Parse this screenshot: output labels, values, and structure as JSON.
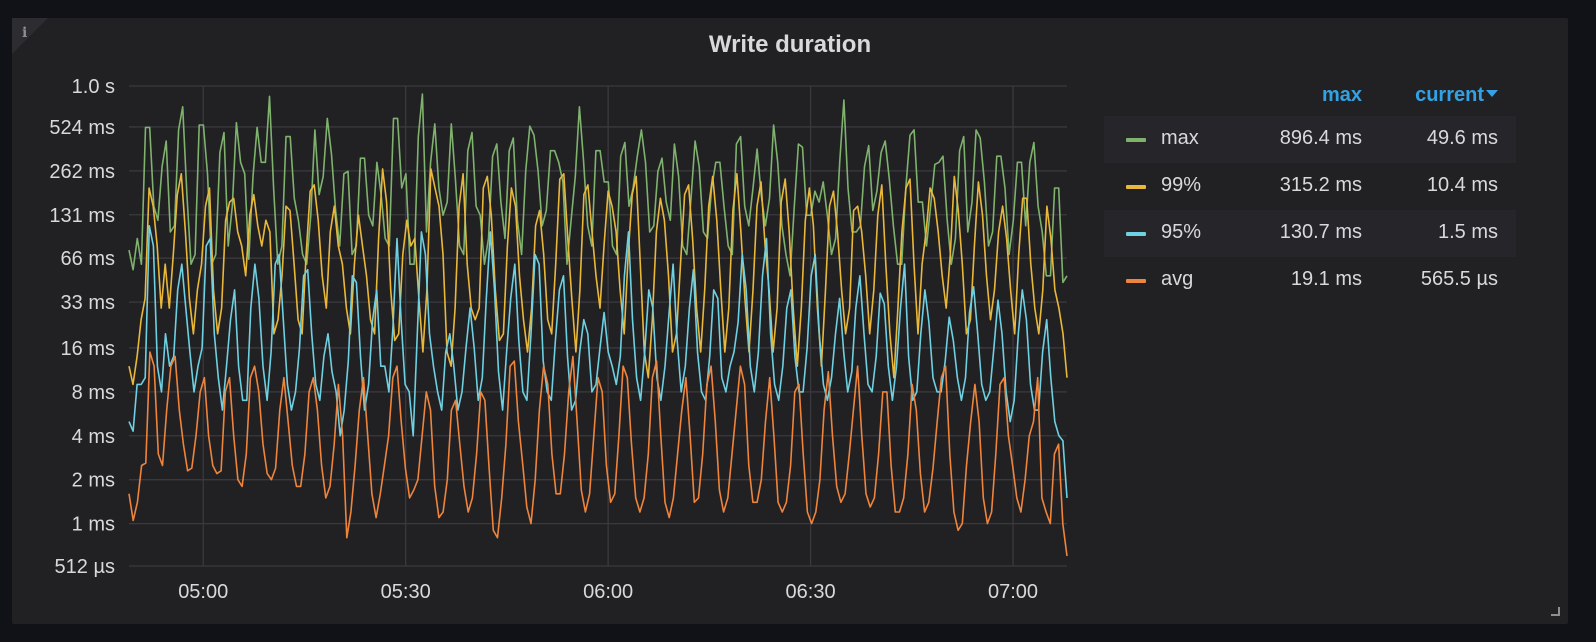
{
  "panel": {
    "title": "Write duration"
  },
  "chart_data": {
    "type": "line",
    "title": "Write duration",
    "y_scale": "log2",
    "y_ticks_ms": [
      0.512,
      1,
      2,
      4,
      8,
      16,
      33,
      66,
      131,
      262,
      524,
      1000
    ],
    "y_tick_labels": [
      "512 µs",
      "1 ms",
      "2 ms",
      "4 ms",
      "8 ms",
      "16 ms",
      "33 ms",
      "66 ms",
      "131 ms",
      "262 ms",
      "524 ms",
      "1.0 s"
    ],
    "ylim_ms": [
      0.512,
      1000
    ],
    "x_ticks": [
      "05:00",
      "05:30",
      "06:00",
      "06:30",
      "07:00"
    ],
    "x_range": [
      "04:49",
      "07:08"
    ],
    "grid": true,
    "legend_position": "right",
    "series": [
      {
        "name": "max",
        "color": "#7eb26d",
        "values_ms": [
          75,
          55,
          90,
          60,
          520,
          520,
          150,
          120,
          280,
          420,
          100,
          110,
          500,
          720,
          180,
          60,
          70,
          540,
          540,
          250,
          60,
          70,
          350,
          480,
          80,
          150,
          560,
          300,
          250,
          65,
          240,
          520,
          300,
          300,
          850,
          200,
          60,
          80,
          450,
          450,
          170,
          120,
          70,
          60,
          130,
          500,
          180,
          240,
          600,
          340,
          140,
          80,
          250,
          260,
          70,
          80,
          320,
          320,
          130,
          110,
          300,
          180,
          90,
          80,
          600,
          600,
          200,
          250,
          60,
          60,
          450,
          880,
          100,
          300,
          550,
          200,
          130,
          160,
          550,
          230,
          80,
          70,
          360,
          480,
          150,
          130,
          60,
          90,
          330,
          400,
          160,
          90,
          360,
          440,
          120,
          70,
          260,
          530,
          460,
          260,
          110,
          140,
          360,
          360,
          300,
          220,
          60,
          120,
          240,
          720,
          310,
          110,
          80,
          360,
          360,
          220,
          220,
          80,
          70,
          330,
          410,
          150,
          200,
          330,
          500,
          300,
          100,
          110,
          260,
          320,
          160,
          120,
          400,
          240,
          80,
          70,
          170,
          420,
          280,
          100,
          90,
          200,
          300,
          300,
          150,
          80,
          70,
          400,
          450,
          150,
          110,
          200,
          370,
          180,
          110,
          170,
          540,
          300,
          110,
          70,
          50,
          150,
          400,
          380,
          130,
          130,
          190,
          160,
          220,
          130,
          70,
          90,
          300,
          800,
          200,
          100,
          100,
          110,
          280,
          390,
          140,
          190,
          350,
          420,
          230,
          110,
          60,
          60,
          200,
          460,
          500,
          160,
          160,
          80,
          150,
          290,
          300,
          330,
          120,
          60,
          90,
          360,
          450,
          100,
          160,
          500,
          440,
          220,
          80,
          100,
          330,
          330,
          200,
          70,
          120,
          300,
          300,
          110,
          300,
          410,
          150,
          100,
          50,
          50,
          200,
          200,
          45,
          50
        ]
      },
      {
        "name": "99%",
        "color": "#eab839",
        "values_ms": [
          12,
          9,
          14,
          25,
          35,
          200,
          150,
          80,
          30,
          60,
          30,
          70,
          180,
          250,
          100,
          35,
          20,
          40,
          60,
          150,
          200,
          40,
          20,
          30,
          120,
          160,
          170,
          100,
          80,
          50,
          130,
          180,
          110,
          80,
          120,
          100,
          20,
          25,
          50,
          150,
          140,
          60,
          25,
          20,
          70,
          190,
          210,
          120,
          50,
          30,
          100,
          150,
          80,
          60,
          30,
          20,
          60,
          130,
          80,
          50,
          25,
          20,
          90,
          270,
          160,
          40,
          18,
          20,
          70,
          120,
          80,
          90,
          35,
          15,
          40,
          270,
          200,
          150,
          70,
          15,
          12,
          30,
          150,
          250,
          60,
          30,
          25,
          30,
          200,
          240,
          130,
          40,
          18,
          20,
          80,
          200,
          150,
          50,
          25,
          15,
          30,
          110,
          140,
          70,
          25,
          20,
          60,
          230,
          250,
          90,
          35,
          15,
          40,
          180,
          210,
          100,
          50,
          30,
          80,
          190,
          150,
          100,
          40,
          20,
          70,
          180,
          240,
          60,
          15,
          10,
          25,
          100,
          170,
          120,
          50,
          15,
          20,
          60,
          180,
          210,
          90,
          30,
          15,
          40,
          150,
          240,
          120,
          40,
          15,
          30,
          140,
          250,
          100,
          35,
          15,
          40,
          150,
          220,
          80,
          40,
          15,
          30,
          160,
          230,
          100,
          30,
          12,
          30,
          120,
          200,
          110,
          30,
          12,
          40,
          150,
          190,
          100,
          40,
          20,
          30,
          140,
          150,
          100,
          50,
          20,
          40,
          130,
          210,
          60,
          20,
          10,
          30,
          100,
          200,
          230,
          60,
          20,
          60,
          100,
          200,
          170,
          100,
          50,
          30,
          70,
          240,
          140,
          60,
          20,
          25,
          80,
          220,
          130,
          50,
          25,
          40,
          100,
          150,
          90,
          40,
          20,
          70,
          170,
          170,
          60,
          30,
          20,
          40,
          150,
          90,
          40,
          30,
          20,
          10
        ]
      },
      {
        "name": "95%",
        "color": "#6ed0e0",
        "values_ms": [
          5,
          4.3,
          9,
          9,
          10,
          110,
          80,
          12,
          8,
          20,
          12,
          14,
          40,
          60,
          30,
          15,
          8,
          12,
          16,
          80,
          90,
          20,
          10,
          6,
          12,
          25,
          40,
          12,
          7,
          7,
          30,
          60,
          35,
          12,
          7,
          15,
          60,
          70,
          25,
          9,
          6,
          8,
          16,
          50,
          55,
          20,
          9,
          7,
          14,
          20,
          11,
          8,
          4,
          6,
          13,
          50,
          45,
          14,
          6,
          9,
          25,
          40,
          12,
          12,
          8,
          22,
          90,
          25,
          9,
          8,
          4,
          20,
          100,
          70,
          20,
          12,
          8,
          6,
          15,
          20,
          12,
          6,
          8,
          16,
          30,
          16,
          7,
          10,
          35,
          100,
          40,
          11,
          6,
          15,
          35,
          60,
          18,
          8,
          7,
          20,
          70,
          60,
          13,
          8,
          7,
          18,
          40,
          50,
          14,
          6,
          7,
          15,
          25,
          20,
          8,
          9,
          16,
          28,
          15,
          12,
          9,
          14,
          50,
          100,
          25,
          10,
          7,
          15,
          40,
          30,
          10,
          7,
          12,
          28,
          60,
          18,
          8,
          12,
          30,
          55,
          15,
          8,
          7,
          14,
          40,
          35,
          10,
          8,
          12,
          15,
          24,
          70,
          40,
          12,
          8,
          15,
          50,
          90,
          20,
          9,
          7,
          12,
          30,
          40,
          14,
          8,
          8,
          16,
          50,
          70,
          20,
          9,
          7,
          10,
          20,
          35,
          15,
          8,
          11,
          30,
          50,
          20,
          9,
          8,
          14,
          38,
          32,
          12,
          7,
          12,
          30,
          60,
          14,
          7,
          8,
          20,
          40,
          24,
          10,
          8,
          8,
          13,
          26,
          18,
          10,
          7,
          10,
          28,
          42,
          20,
          9,
          7,
          8,
          16,
          34,
          20,
          8,
          5,
          7,
          20,
          40,
          25,
          9,
          6,
          6,
          15,
          25,
          10,
          5,
          4,
          3.7,
          1.5
        ]
      },
      {
        "name": "avg",
        "color": "#ef843c",
        "values_ms": [
          1.6,
          1.05,
          1.4,
          2.5,
          2.6,
          15,
          12,
          3,
          2.5,
          6,
          12,
          14,
          6,
          3.5,
          2.3,
          2.4,
          4,
          8,
          10,
          4,
          2.5,
          2.2,
          2.3,
          8,
          10,
          4,
          2,
          1.8,
          3,
          10,
          12,
          8,
          3.5,
          2.2,
          2,
          2.4,
          6,
          10,
          5,
          2.5,
          1.8,
          1.8,
          3,
          8,
          10,
          6,
          2.5,
          1.5,
          1.8,
          3.5,
          9,
          4,
          0.8,
          1.2,
          2.5,
          6,
          10,
          4,
          1.6,
          1.1,
          1.6,
          2.5,
          4,
          10,
          12,
          5,
          2.4,
          1.5,
          1.7,
          2,
          4,
          8,
          6,
          1.8,
          1.1,
          1.2,
          2,
          6,
          7,
          3.5,
          1.8,
          1.2,
          1.5,
          3,
          8,
          7,
          2.4,
          0.9,
          0.8,
          1.5,
          3.5,
          12,
          13,
          5,
          2.6,
          1.3,
          1,
          2,
          6,
          12,
          9,
          3,
          1.6,
          1.6,
          3,
          8,
          14,
          5,
          1.7,
          1.2,
          1.6,
          4,
          10,
          8,
          2.5,
          1.4,
          1.6,
          4,
          12,
          10,
          3.5,
          1.5,
          1.2,
          1.5,
          3,
          10,
          13,
          4,
          1.4,
          1.1,
          1.5,
          3,
          6,
          10,
          4,
          1.4,
          1.5,
          3,
          9,
          12,
          5,
          1.7,
          1.2,
          1.5,
          3,
          6,
          12,
          9,
          2.5,
          1.4,
          1.4,
          2,
          5,
          10,
          4,
          1.4,
          1.2,
          1.4,
          2.5,
          8,
          9,
          3,
          1.2,
          1,
          1.2,
          2,
          6,
          11,
          4,
          1.8,
          1.4,
          1.6,
          3,
          6,
          12,
          4,
          1.6,
          1.3,
          1.5,
          3,
          8,
          8,
          2.5,
          1.2,
          1.2,
          1.5,
          3,
          9,
          6,
          2.2,
          1.2,
          1.4,
          2.4,
          5,
          10,
          12,
          3,
          1.2,
          0.9,
          1,
          2.5,
          5,
          9,
          5,
          1.5,
          1,
          1.2,
          3,
          9,
          10,
          4,
          2.5,
          1.5,
          1.2,
          2,
          4,
          5,
          10,
          1.5,
          1.2,
          1,
          3,
          3.5,
          1,
          0.6
        ]
      }
    ]
  },
  "legend": {
    "columns": {
      "max": "max",
      "current": "current"
    },
    "rows": [
      {
        "name": "max",
        "color": "#7eb26d",
        "max": "896.4 ms",
        "current": "49.6 ms"
      },
      {
        "name": "99%",
        "color": "#eab839",
        "max": "315.2 ms",
        "current": "10.4 ms"
      },
      {
        "name": "95%",
        "color": "#6ed0e0",
        "max": "130.7 ms",
        "current": "1.5 ms"
      },
      {
        "name": "avg",
        "color": "#ef843c",
        "max": "19.1 ms",
        "current": "565.5 µs"
      }
    ]
  },
  "colors": {
    "background": "#111217",
    "panel": "#212124",
    "grid": "#3a3a3e",
    "text": "#d8d9da",
    "accent": "#33a2e5"
  }
}
